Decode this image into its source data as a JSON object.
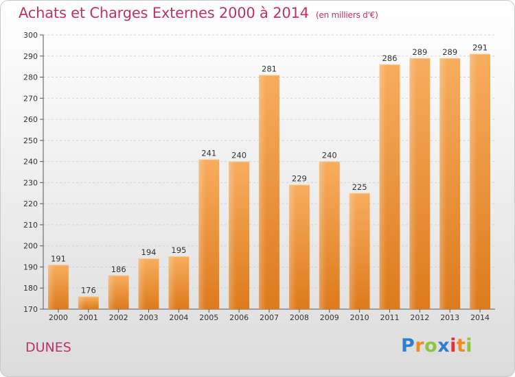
{
  "title": "Achats et Charges Externes 2000 à 2014",
  "subtitle": "(en milliers d'€)",
  "commune": "DUNES",
  "logo": {
    "letters": [
      "P",
      "r",
      "o",
      "x",
      "i",
      "t",
      "i"
    ],
    "colors": [
      "#2e7fd0",
      "#f28a1e",
      "#8cc63f",
      "#2e7fd0",
      "#e6342c",
      "#f28a1e",
      "#8cc63f"
    ]
  },
  "colors": {
    "bar": "#e8862a",
    "bar_light": "#f6ae5c",
    "title": "#c0306a"
  },
  "chart_data": {
    "type": "bar",
    "categories": [
      "2000",
      "2001",
      "2002",
      "2003",
      "2004",
      "2005",
      "2006",
      "2007",
      "2008",
      "2009",
      "2010",
      "2011",
      "2012",
      "2013",
      "2014"
    ],
    "values": [
      191,
      176,
      186,
      194,
      195,
      241,
      240,
      281,
      229,
      240,
      225,
      286,
      289,
      289,
      291
    ],
    "title": "Achats et Charges Externes 2000 à 2014",
    "subtitle": "(en milliers d'€)",
    "xlabel": "",
    "ylabel": "",
    "ylim": [
      170,
      300
    ],
    "yticks": [
      170,
      180,
      190,
      200,
      210,
      220,
      230,
      240,
      250,
      260,
      270,
      280,
      290,
      300
    ],
    "grid": true,
    "legend": "none"
  }
}
